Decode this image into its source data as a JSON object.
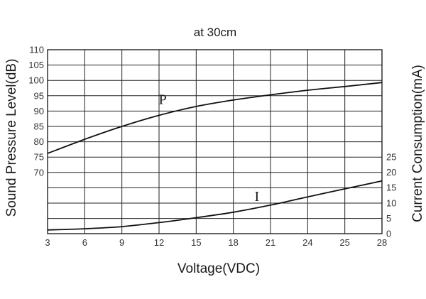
{
  "chart_data": {
    "type": "line",
    "title": "at 30cm",
    "xlabel": "Voltage(VDC)",
    "ylabel_left": "Sound Pressure Level(dB)",
    "ylabel_right": "Current Consumption(mA)",
    "x_ticks": [
      "3",
      "6",
      "9",
      "12",
      "15",
      "18",
      "21",
      "24",
      "25",
      "28"
    ],
    "y_left_ticks": [
      "110",
      "105",
      "100",
      "95",
      "90",
      "85",
      "80",
      "75",
      "70"
    ],
    "y_right_ticks": [
      "25",
      "20",
      "15",
      "10",
      "5",
      "0"
    ],
    "grid": true,
    "series": [
      {
        "name": "P",
        "axis": "left",
        "unit": "dB",
        "points": [
          {
            "x": 3,
            "y": 76.2
          },
          {
            "x": 6,
            "y": 80.8
          },
          {
            "x": 9,
            "y": 85.0
          },
          {
            "x": 12,
            "y": 88.6
          },
          {
            "x": 15,
            "y": 91.5
          },
          {
            "x": 18,
            "y": 93.6
          },
          {
            "x": 21,
            "y": 95.3
          },
          {
            "x": 24,
            "y": 96.8
          },
          {
            "x": 25,
            "y": 98.0
          },
          {
            "x": 28,
            "y": 99.3
          }
        ]
      },
      {
        "name": "I",
        "axis": "right",
        "unit": "mA",
        "points": [
          {
            "x": 3,
            "y": 1.2
          },
          {
            "x": 6,
            "y": 1.6
          },
          {
            "x": 9,
            "y": 2.3
          },
          {
            "x": 12,
            "y": 3.6
          },
          {
            "x": 15,
            "y": 5.2
          },
          {
            "x": 18,
            "y": 7.0
          },
          {
            "x": 21,
            "y": 9.3
          },
          {
            "x": 24,
            "y": 12.0
          },
          {
            "x": 25,
            "y": 14.6
          },
          {
            "x": 28,
            "y": 17.2
          }
        ]
      }
    ]
  }
}
